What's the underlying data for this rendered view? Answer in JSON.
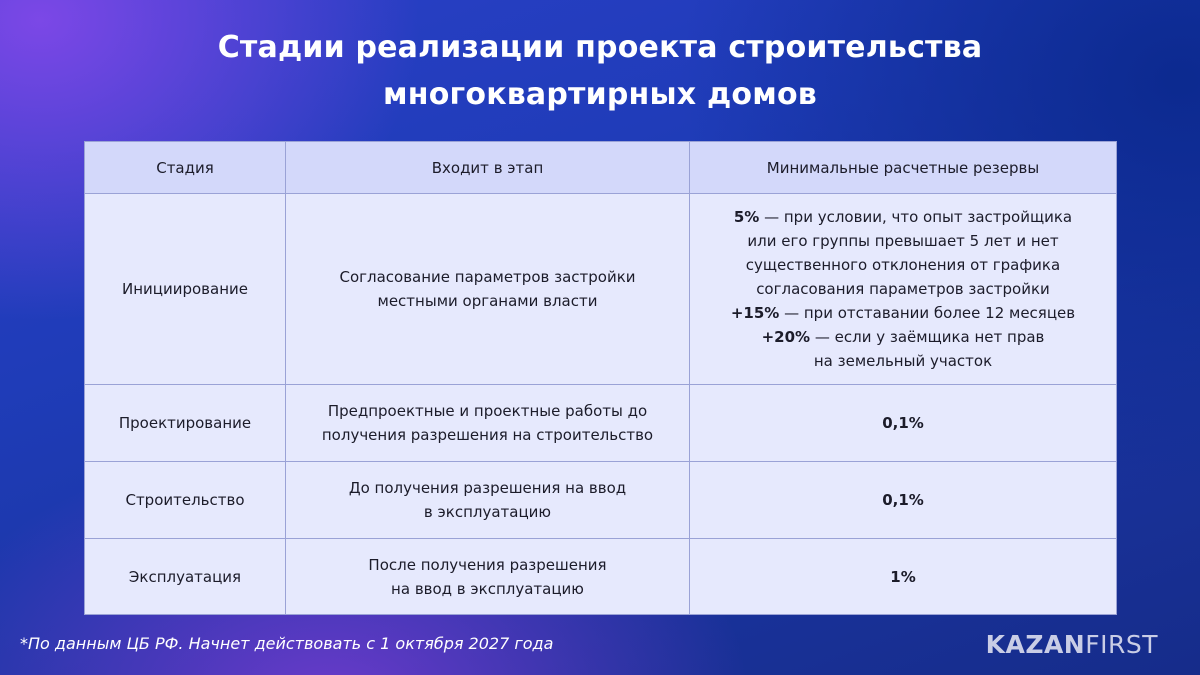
{
  "title": {
    "line1": "Стадии реализации проекта строительства",
    "line2": "многоквартирных домов"
  },
  "table": {
    "headers": [
      "Стадия",
      "Входит в этап",
      "Минимальные расчетные резервы"
    ],
    "rows": [
      {
        "stage": "Инициирование",
        "phase_lines": [
          "Согласование параметров застройки",
          "местными органами власти"
        ],
        "reserves": [
          {
            "bold": "5%",
            "text": " — при условии, что опыт застройщика"
          },
          {
            "bold": "",
            "text": "или его группы превышает 5 лет и нет"
          },
          {
            "bold": "",
            "text": "существенного отклонения от графика"
          },
          {
            "bold": "",
            "text": "согласования параметров застройки"
          },
          {
            "bold": "+15%",
            "text": " — при отставании более 12 месяцев"
          },
          {
            "bold": "+20%",
            "text": " — если у заёмщика нет прав"
          },
          {
            "bold": "",
            "text": "на земельный участок"
          }
        ]
      },
      {
        "stage": "Проектирование",
        "phase_lines": [
          "Предпроектные и проектные работы до",
          "получения разрешения на строительство"
        ],
        "reserve": "0,1%"
      },
      {
        "stage": "Строительство",
        "phase_lines": [
          "До получения разрешения на ввод",
          "в эксплуатацию"
        ],
        "reserve": "0,1%"
      },
      {
        "stage": "Эксплуатация",
        "phase_lines": [
          "После получения разрешения",
          "на ввод в эксплуатацию"
        ],
        "reserve": "1%"
      }
    ]
  },
  "footnote": "*По данным ЦБ РФ. Начнет действовать с 1 октября 2027 года",
  "logo": {
    "part1": "KAZAN",
    "part2": "FIRST"
  },
  "colors": {
    "header_bg": "#d3d8fa",
    "cell_bg": "#e6e9fd",
    "border": "#9aa2d6",
    "background": "#1f3cb8",
    "accent_purple": "#8048e8"
  }
}
